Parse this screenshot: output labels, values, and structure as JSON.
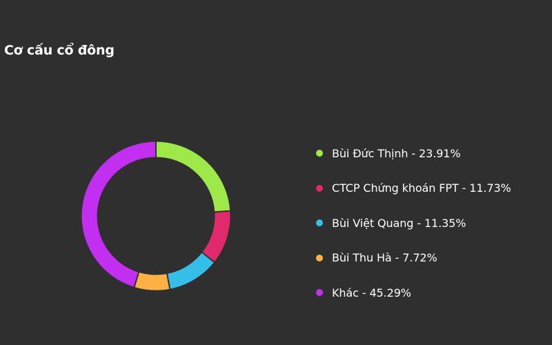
{
  "title": "Cơ cấu cổ đông",
  "chart_data": {
    "type": "pie",
    "title": "Cơ cấu cổ đông",
    "legend_position": "right",
    "series": [
      {
        "name": "Bùi Đức Thịnh",
        "value": 23.91,
        "label": "Bùi Đức Thịnh - 23.91%",
        "color": "#9ee84a"
      },
      {
        "name": "CTCP Chứng khoán FPT",
        "value": 11.73,
        "label": "CTCP Chứng khoán FPT - 11.73%",
        "color": "#e02a6b"
      },
      {
        "name": "Bùi Việt Quang",
        "value": 11.35,
        "label": "Bùi Việt Quang - 11.35%",
        "color": "#35bfe8"
      },
      {
        "name": "Bùi Thu Hà",
        "value": 7.72,
        "label": "Bùi Thu Hà - 7.72%",
        "color": "#fdb143"
      },
      {
        "name": "Khác",
        "value": 45.29,
        "label": "Khác - 45.29%",
        "color": "#c22ff0"
      }
    ]
  }
}
